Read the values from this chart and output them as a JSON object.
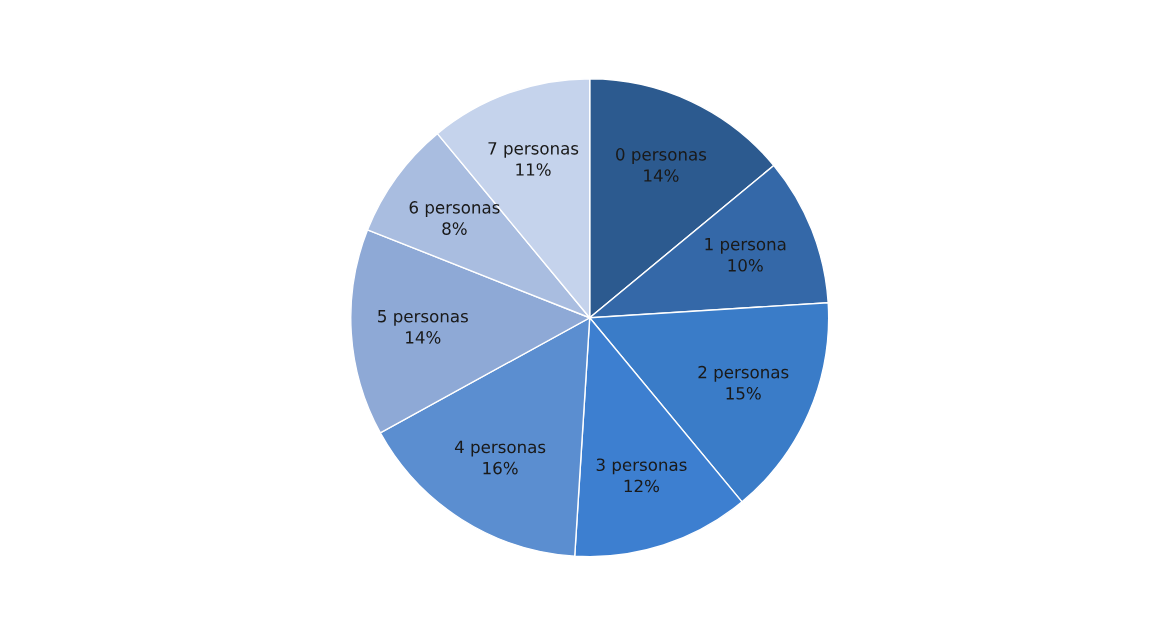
{
  "chart_data": {
    "type": "pie",
    "categories": [
      "0 personas",
      "1 persona",
      "2 personas",
      "3 personas",
      "4 personas",
      "5 personas",
      "6 personas",
      "7 personas"
    ],
    "values": [
      14,
      10,
      15,
      12,
      16,
      14,
      8,
      11
    ],
    "value_labels": [
      "14%",
      "10%",
      "15%",
      "12%",
      "16%",
      "14%",
      "8%",
      "11%"
    ],
    "colors": [
      "#2c5a8f",
      "#3468a8",
      "#3a7cc8",
      "#3d7fd0",
      "#5b8ed0",
      "#8ea9d6",
      "#a9bde0",
      "#c5d3ec"
    ],
    "legend": false
  }
}
